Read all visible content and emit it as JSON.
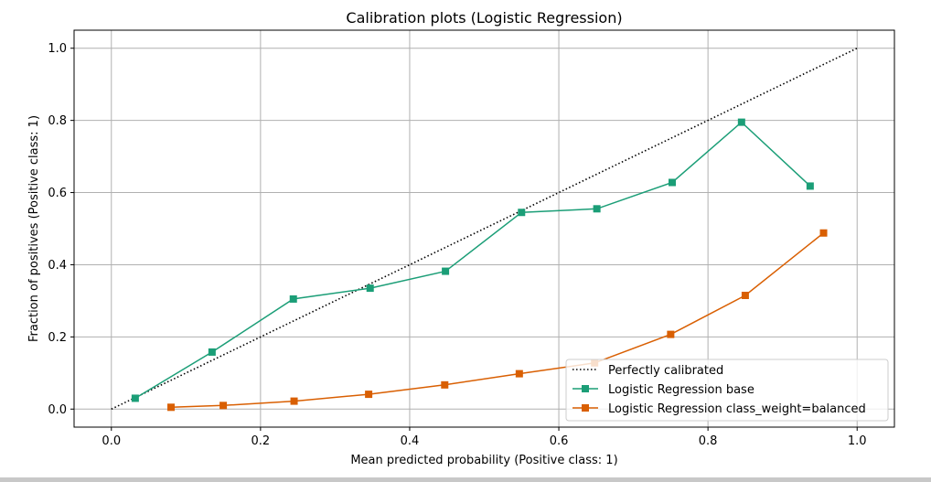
{
  "chart_data": {
    "type": "line",
    "title": "Calibration plots (Logistic Regression)",
    "xlabel": "Mean predicted probability (Positive class: 1)",
    "ylabel": "Fraction of positives (Positive class: 1)",
    "xlim": [
      -0.05,
      1.05
    ],
    "ylim": [
      -0.05,
      1.05
    ],
    "xticks": [
      0.0,
      0.2,
      0.4,
      0.6,
      0.8,
      1.0
    ],
    "yticks": [
      0.0,
      0.2,
      0.4,
      0.6,
      0.8,
      1.0
    ],
    "xtick_labels": [
      "0.0",
      "0.2",
      "0.4",
      "0.6",
      "0.8",
      "1.0"
    ],
    "ytick_labels": [
      "0.0",
      "0.2",
      "0.4",
      "0.6",
      "0.8",
      "1.0"
    ],
    "grid": true,
    "legend_position": "bottom-right",
    "series": [
      {
        "name": "Perfectly calibrated",
        "style": "dotted",
        "marker": "none",
        "color": "#000000",
        "x": [
          0.0,
          1.0
        ],
        "y": [
          0.0,
          1.0
        ]
      },
      {
        "name": "Logistic Regression base",
        "style": "solid",
        "marker": "square",
        "color": "#1b9e77",
        "x": [
          0.032,
          0.135,
          0.244,
          0.347,
          0.448,
          0.55,
          0.651,
          0.752,
          0.845,
          0.937
        ],
        "y": [
          0.03,
          0.158,
          0.305,
          0.335,
          0.382,
          0.545,
          0.555,
          0.628,
          0.795,
          0.618
        ]
      },
      {
        "name": "Logistic Regression class_weight=balanced",
        "style": "solid",
        "marker": "square",
        "color": "#d95f02",
        "x": [
          0.08,
          0.15,
          0.245,
          0.345,
          0.447,
          0.547,
          0.648,
          0.75,
          0.85,
          0.955
        ],
        "y": [
          0.005,
          0.01,
          0.022,
          0.041,
          0.067,
          0.098,
          0.128,
          0.207,
          0.315,
          0.488
        ]
      }
    ]
  }
}
